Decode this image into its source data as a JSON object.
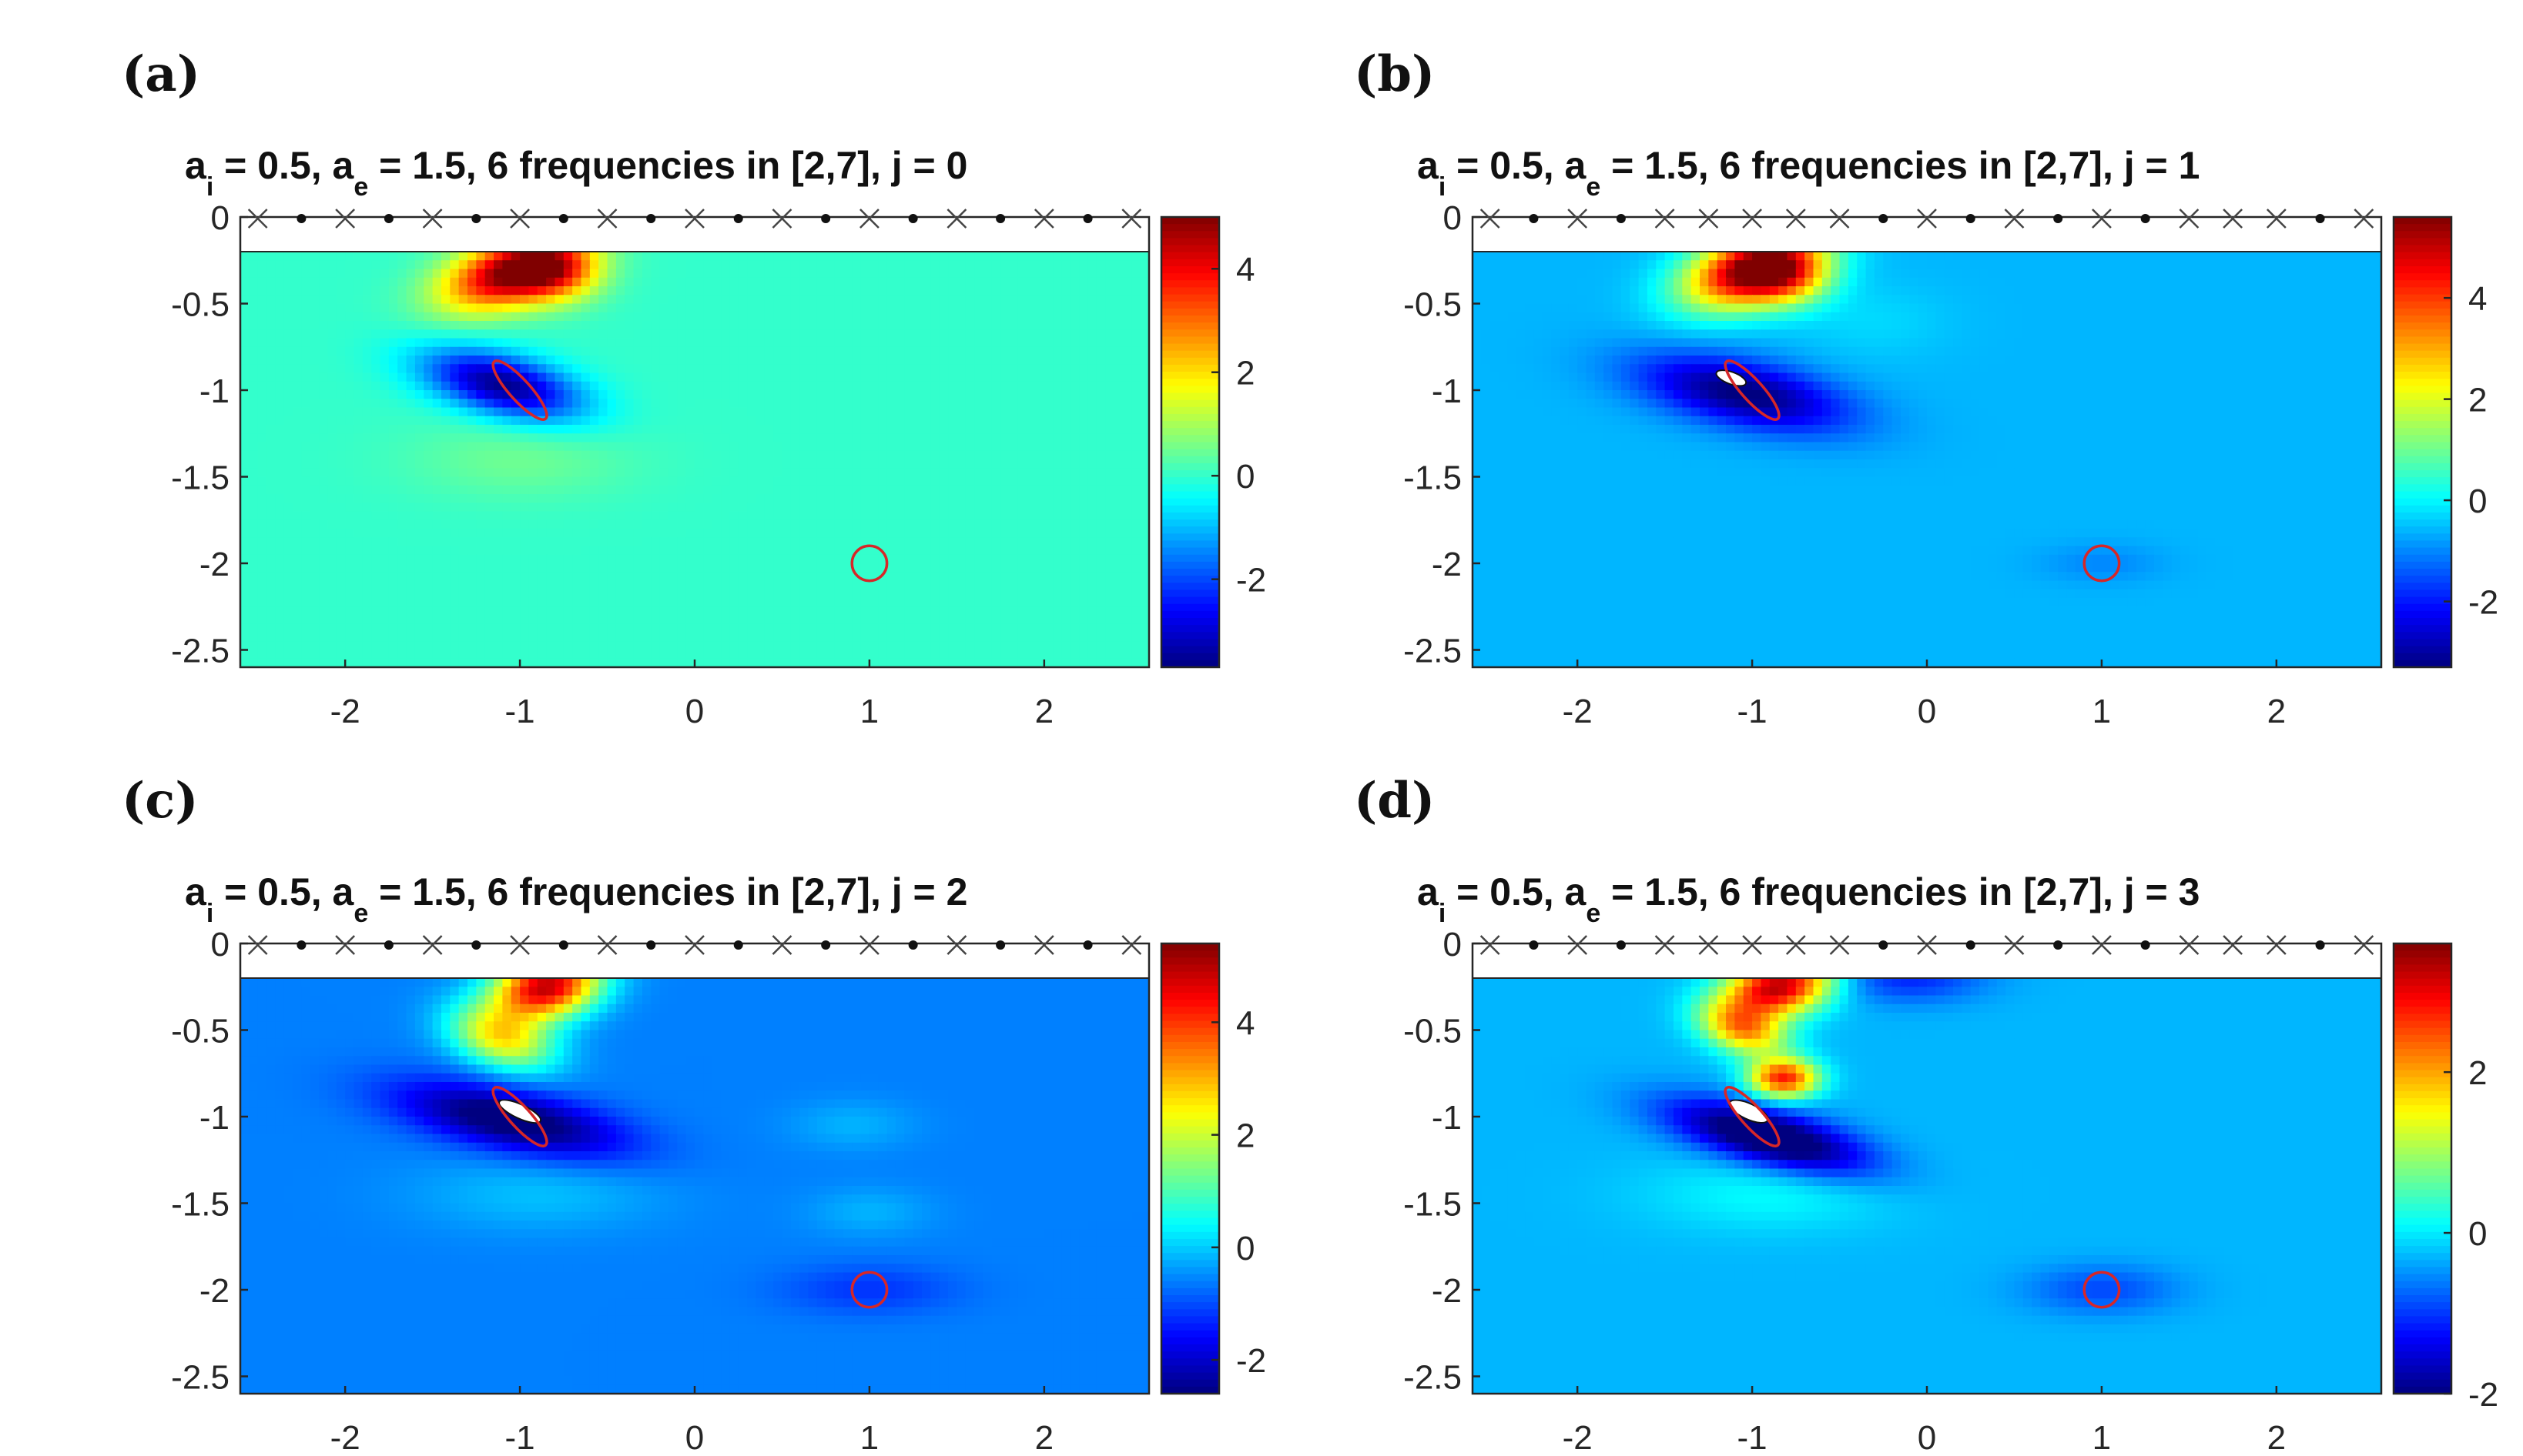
{
  "figure": {
    "panels": [
      {
        "label": "(a)",
        "title": {
          "prefix_a": "a",
          "sub_i": "i",
          "mid": " = 0.5,   a",
          "sub_e": "e",
          "rest": " = 1.5,   6 frequencies in [2,7],  j = 0"
        }
      },
      {
        "label": "(b)",
        "title": {
          "prefix_a": "a",
          "sub_i": "i",
          "mid": " = 0.5,   a",
          "sub_e": "e",
          "rest": " = 1.5,   6 frequencies in [2,7],  j = 1"
        }
      },
      {
        "label": "(c)",
        "title": {
          "prefix_a": "a",
          "sub_i": "i",
          "mid": " = 0.5,   a",
          "sub_e": "e",
          "rest": " = 1.5,   6 frequencies in [2,7],  j = 2"
        }
      },
      {
        "label": "(d)",
        "title": {
          "prefix_a": "a",
          "sub_i": "i",
          "mid": " = 0.5,   a",
          "sub_e": "e",
          "rest": " = 1.5,   6 frequencies in [2,7],  j = 3"
        }
      }
    ]
  },
  "chart_data": [
    {
      "type": "heatmap",
      "title": "a_i = 0.5, a_e = 1.5, 6 frequencies in [2,7], j = 0",
      "xlim": [
        -2.6,
        2.6
      ],
      "ylim": [
        -2.6,
        0
      ],
      "xticks": [
        -2,
        -1,
        0,
        1,
        2
      ],
      "xtick_labels": [
        "-2",
        "-1",
        "0",
        "1",
        "2"
      ],
      "yticks": [
        0,
        -0.5,
        -1,
        -1.5,
        -2,
        -2.5
      ],
      "ytick_labels": [
        "0",
        "-0.5",
        "-1",
        "-1.5",
        "-2",
        "-2.5"
      ],
      "colorbar": {
        "cmin": -3.7,
        "cmax": 5.0,
        "ticks": [
          4,
          2,
          0,
          -2
        ],
        "tick_labels": [
          "4",
          "2",
          "0",
          "-2"
        ]
      },
      "background_value": 0,
      "peaks": [
        {
          "x": -1.05,
          "y": -0.32,
          "sx": 0.28,
          "sy": 0.13,
          "amp": 4.8,
          "rot": 0.3
        },
        {
          "x": -0.8,
          "y": -0.32,
          "sx": 0.18,
          "sy": 0.12,
          "amp": 2.5,
          "rot": 0
        },
        {
          "x": -1.1,
          "y": -0.97,
          "sx": 0.32,
          "sy": 0.12,
          "amp": -3.6,
          "rot": -0.25
        },
        {
          "x": -1.0,
          "y": -1.4,
          "sx": 0.45,
          "sy": 0.16,
          "amp": 0.5,
          "rot": 0
        }
      ],
      "ellipse_target": {
        "cx": -1.0,
        "cy": -1.0,
        "a": 0.22,
        "b": 0.06,
        "angle_deg": -48
      },
      "circle_target": {
        "cx": 1.0,
        "cy": -2.0,
        "r": 0.1
      },
      "reconstruction": [],
      "sensor_markers": [
        "x",
        "o",
        "x",
        "o",
        "x",
        "o",
        "x",
        "o",
        "x",
        "o",
        "x",
        "o",
        "x",
        "o",
        "x",
        "o",
        "x",
        "o",
        "x",
        "o",
        "x"
      ]
    },
    {
      "type": "heatmap",
      "title": "a_i = 0.5, a_e = 1.5, 6 frequencies in [2,7], j = 1",
      "xlim": [
        -2.6,
        2.6
      ],
      "ylim": [
        -2.6,
        0
      ],
      "xticks": [
        -2,
        -1,
        0,
        1,
        2
      ],
      "xtick_labels": [
        "-2",
        "-1",
        "0",
        "1",
        "2"
      ],
      "yticks": [
        0,
        -0.5,
        -1,
        -1.5,
        -2,
        -2.5
      ],
      "ytick_labels": [
        "0",
        "-0.5",
        "-1",
        "-1.5",
        "-2",
        "-2.5"
      ],
      "colorbar": {
        "cmin": -3.3,
        "cmax": 5.6,
        "ticks": [
          4,
          2,
          0,
          -2
        ],
        "tick_labels": [
          "4",
          "2",
          "0",
          "-2"
        ]
      },
      "background_value": -0.6,
      "peaks": [
        {
          "x": -1.0,
          "y": -0.3,
          "sx": 0.28,
          "sy": 0.14,
          "amp": 6.0,
          "rot": 0.3
        },
        {
          "x": -0.8,
          "y": -0.35,
          "sx": 0.18,
          "sy": 0.12,
          "amp": 2.5,
          "rot": 0
        },
        {
          "x": -1.05,
          "y": -1.02,
          "sx": 0.42,
          "sy": 0.13,
          "amp": -2.8,
          "rot": -0.2
        },
        {
          "x": -0.3,
          "y": -0.6,
          "sx": 0.3,
          "sy": 0.15,
          "amp": 0.3,
          "rot": 0
        },
        {
          "x": 1.0,
          "y": -2.0,
          "sx": 0.25,
          "sy": 0.08,
          "amp": -0.4,
          "rot": 0
        }
      ],
      "ellipse_target": {
        "cx": -1.0,
        "cy": -1.0,
        "a": 0.22,
        "b": 0.06,
        "angle_deg": -48
      },
      "circle_target": {
        "cx": 1.0,
        "cy": -2.0,
        "r": 0.1
      },
      "reconstruction": [
        {
          "cx": -1.12,
          "cy": -0.93,
          "rx": 0.09,
          "ry": 0.035,
          "angle_deg": -20
        }
      ],
      "sensor_markers": [
        "x",
        "o",
        "x",
        "o",
        "x",
        "x",
        "x",
        "x",
        "x",
        "o",
        "x",
        "o",
        "x",
        "o",
        "x",
        "o",
        "x",
        "x",
        "x",
        "o",
        "x"
      ]
    },
    {
      "type": "heatmap",
      "title": "a_i = 0.5, a_e = 1.5, 6 frequencies in [2,7], j = 2",
      "xlim": [
        -2.6,
        2.6
      ],
      "ylim": [
        -2.6,
        0
      ],
      "xticks": [
        -2,
        -1,
        0,
        1,
        2
      ],
      "xtick_labels": [
        "-2",
        "-1",
        "0",
        "1",
        "2"
      ],
      "yticks": [
        0,
        -0.5,
        -1,
        -1.5,
        -2,
        -2.5
      ],
      "ytick_labels": [
        "0",
        "-0.5",
        "-1",
        "-1.5",
        "-2",
        "-2.5"
      ],
      "colorbar": {
        "cmin": -2.6,
        "cmax": 5.4,
        "ticks": [
          4,
          2,
          0,
          -2
        ],
        "tick_labels": [
          "4",
          "2",
          "0",
          "-2"
        ]
      },
      "background_value": -0.6,
      "peaks": [
        {
          "x": -0.85,
          "y": -0.25,
          "sx": 0.22,
          "sy": 0.13,
          "amp": 5.5,
          "rot": 0.2
        },
        {
          "x": -1.1,
          "y": -0.55,
          "sx": 0.22,
          "sy": 0.12,
          "amp": 3.0,
          "rot": -0.3
        },
        {
          "x": -1.05,
          "y": -1.02,
          "sx": 0.45,
          "sy": 0.12,
          "amp": -2.4,
          "rot": -0.2
        },
        {
          "x": 0.9,
          "y": -1.05,
          "sx": 0.25,
          "sy": 0.1,
          "amp": 0.4,
          "rot": 0
        },
        {
          "x": 1.0,
          "y": -1.55,
          "sx": 0.25,
          "sy": 0.1,
          "amp": 0.4,
          "rot": 0
        },
        {
          "x": 1.0,
          "y": -2.0,
          "sx": 0.35,
          "sy": 0.1,
          "amp": -0.6,
          "rot": 0
        },
        {
          "x": -0.9,
          "y": -1.45,
          "sx": 0.5,
          "sy": 0.15,
          "amp": 0.5,
          "rot": 0
        }
      ],
      "ellipse_target": {
        "cx": -1.0,
        "cy": -1.0,
        "a": 0.22,
        "b": 0.06,
        "angle_deg": -48
      },
      "circle_target": {
        "cx": 1.0,
        "cy": -2.0,
        "r": 0.1
      },
      "reconstruction": [
        {
          "cx": -1.0,
          "cy": -0.97,
          "rx": 0.13,
          "ry": 0.04,
          "angle_deg": -25
        }
      ],
      "sensor_markers": [
        "x",
        "o",
        "x",
        "o",
        "x",
        "o",
        "x",
        "o",
        "x",
        "o",
        "x",
        "o",
        "x",
        "o",
        "x",
        "o",
        "x",
        "o",
        "x",
        "o",
        "x"
      ]
    },
    {
      "type": "heatmap",
      "title": "a_i = 0.5, a_e = 1.5, 6 frequencies in [2,7], j = 3",
      "xlim": [
        -2.6,
        2.6
      ],
      "ylim": [
        -2.6,
        0
      ],
      "xticks": [
        -2,
        -1,
        0,
        1,
        2
      ],
      "xtick_labels": [
        "-2",
        "-1",
        "0",
        "1",
        "2"
      ],
      "yticks": [
        0,
        -0.5,
        -1,
        -1.5,
        -2,
        -2.5
      ],
      "ytick_labels": [
        "0",
        "-0.5",
        "-1",
        "-1.5",
        "-2",
        "-2.5"
      ],
      "colorbar": {
        "cmin": -2.0,
        "cmax": 3.6,
        "ticks": [
          2,
          0,
          -2
        ],
        "tick_labels": [
          "2",
          "0",
          "-2"
        ]
      },
      "background_value": -0.3,
      "peaks": [
        {
          "x": -0.85,
          "y": -0.25,
          "sx": 0.22,
          "sy": 0.12,
          "amp": 3.6,
          "rot": 0.2
        },
        {
          "x": -1.05,
          "y": -0.5,
          "sx": 0.18,
          "sy": 0.1,
          "amp": 2.2,
          "rot": -0.3
        },
        {
          "x": -0.82,
          "y": -0.78,
          "sx": 0.14,
          "sy": 0.08,
          "amp": 3.0,
          "rot": 0
        },
        {
          "x": -0.9,
          "y": -1.12,
          "sx": 0.4,
          "sy": 0.11,
          "amp": -2.3,
          "rot": -0.25
        },
        {
          "x": -0.1,
          "y": -0.2,
          "sx": 0.3,
          "sy": 0.1,
          "amp": -0.8,
          "rot": 0
        },
        {
          "x": 1.0,
          "y": -2.0,
          "sx": 0.3,
          "sy": 0.1,
          "amp": -0.6,
          "rot": 0
        },
        {
          "x": -0.9,
          "y": -1.45,
          "sx": 0.5,
          "sy": 0.15,
          "amp": 0.4,
          "rot": 0
        }
      ],
      "ellipse_target": {
        "cx": -1.0,
        "cy": -1.0,
        "a": 0.22,
        "b": 0.06,
        "angle_deg": -48
      },
      "circle_target": {
        "cx": 1.0,
        "cy": -2.0,
        "r": 0.1
      },
      "reconstruction": [
        {
          "cx": -1.02,
          "cy": -0.97,
          "rx": 0.12,
          "ry": 0.045,
          "angle_deg": -25
        }
      ],
      "sensor_markers": [
        "x",
        "o",
        "x",
        "o",
        "x",
        "x",
        "x",
        "x",
        "x",
        "o",
        "x",
        "o",
        "x",
        "o",
        "x",
        "o",
        "x",
        "x",
        "x",
        "o",
        "x"
      ]
    }
  ]
}
